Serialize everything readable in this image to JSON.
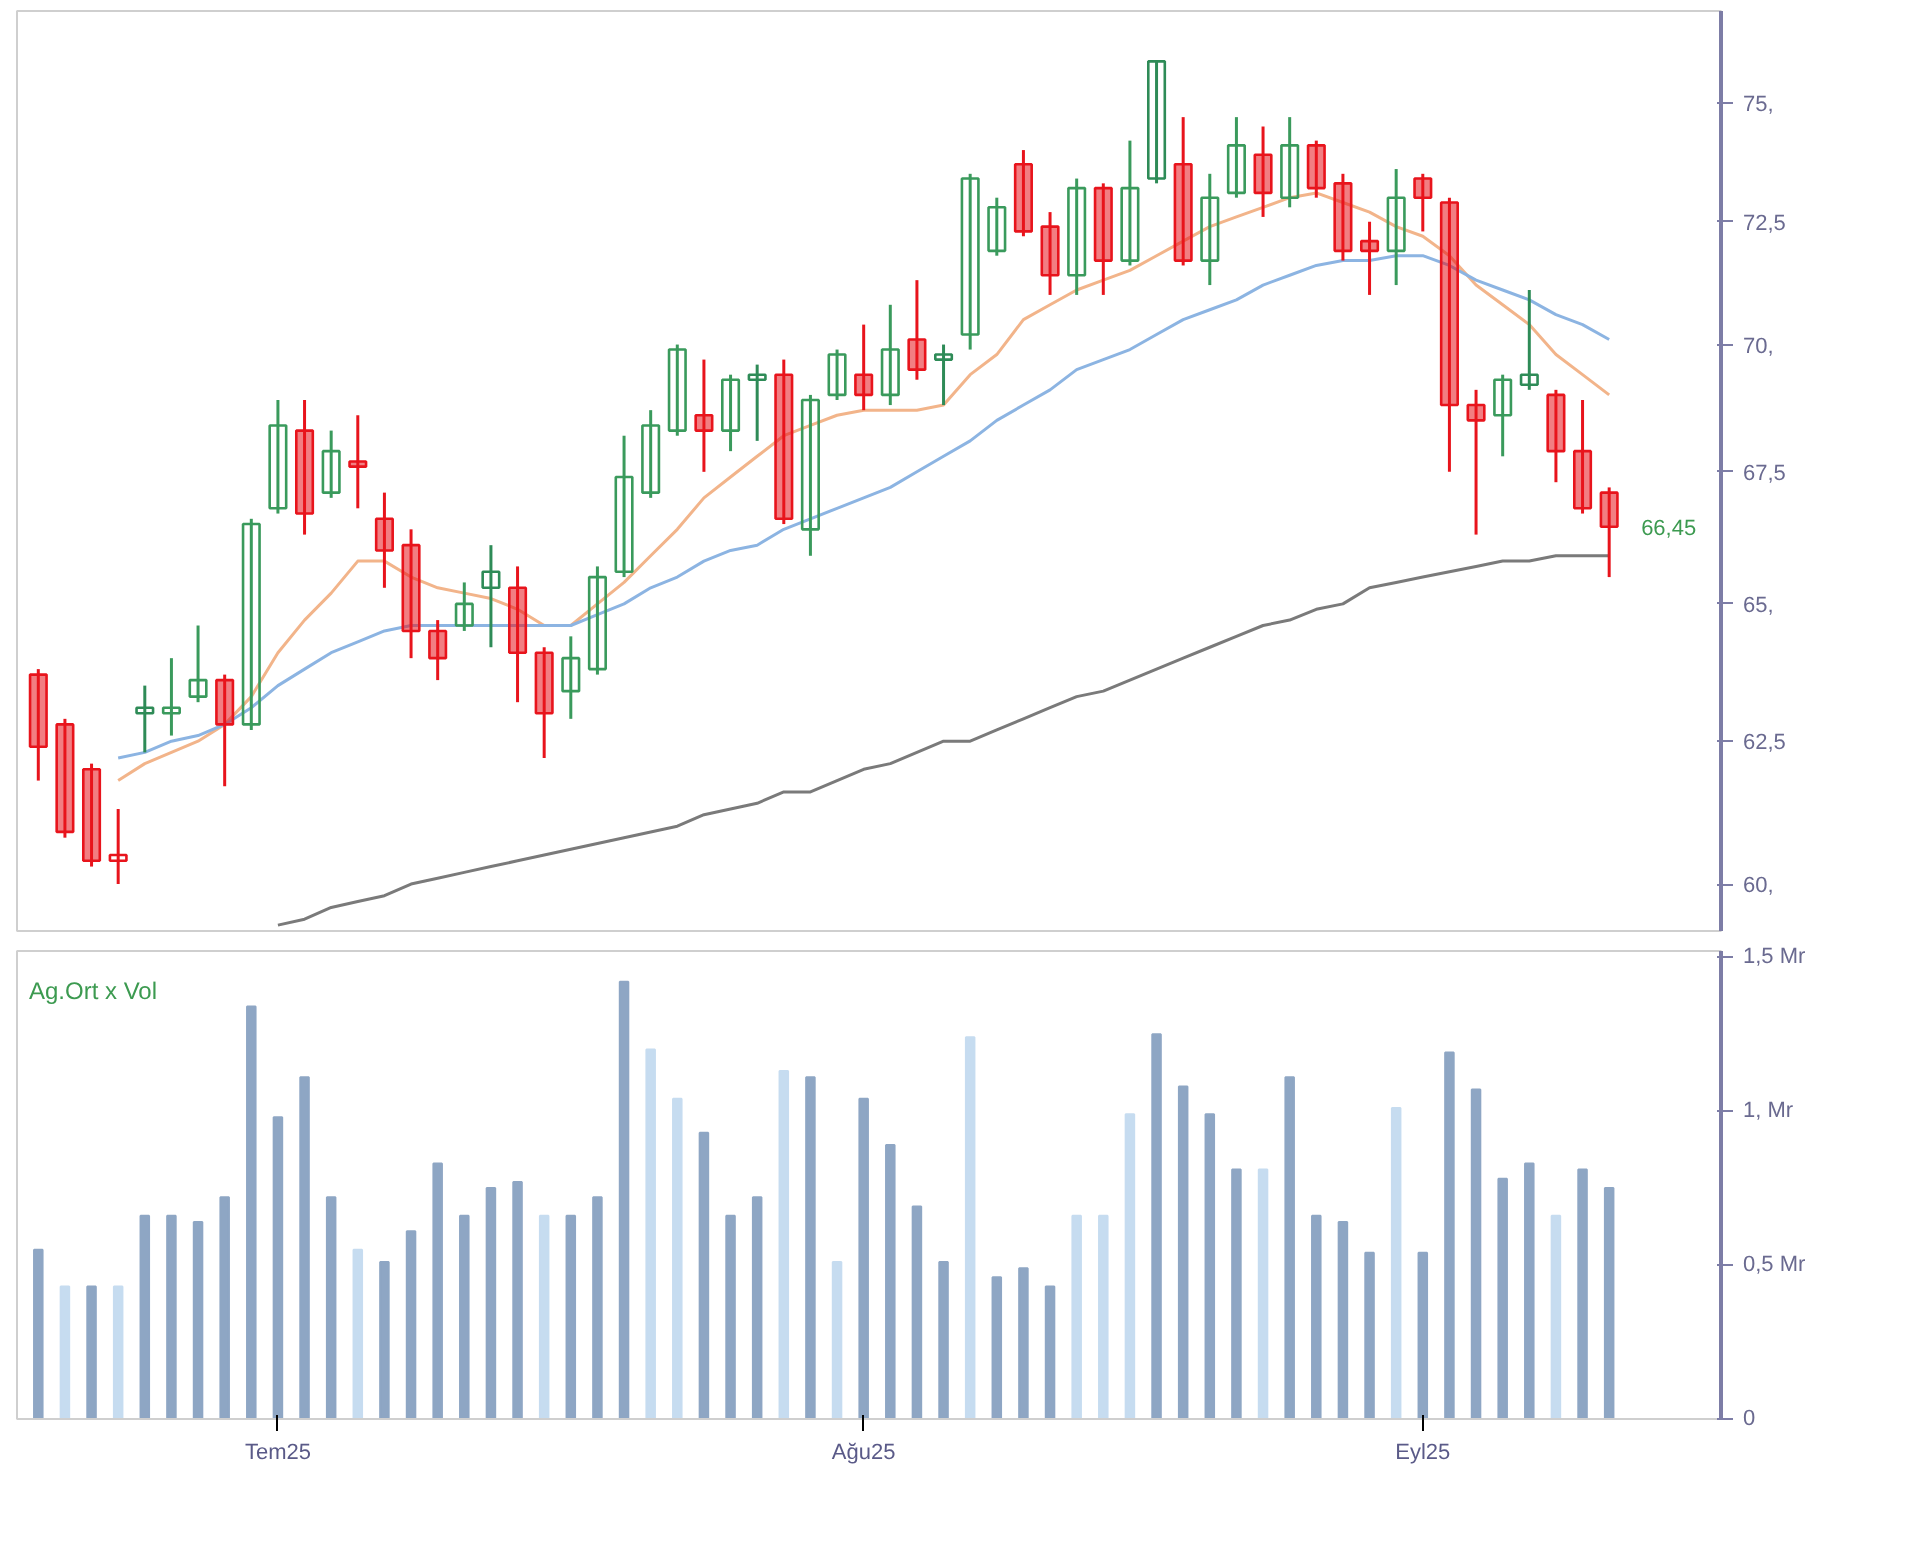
{
  "chart_data": [
    {
      "type": "candlestick",
      "log": "y",
      "ylim": [
        59.2,
        77.0
      ],
      "tick_labels": "y",
      "yticks": [
        {
          "value": 60,
          "label": "60,"
        },
        {
          "value": 62.5,
          "label": "62,5"
        },
        {
          "value": 65,
          "label": "65,"
        },
        {
          "value": 67.5,
          "label": "67,5"
        },
        {
          "value": 70,
          "label": "70,"
        },
        {
          "value": 72.5,
          "label": "72,5"
        },
        {
          "value": 75,
          "label": "75,"
        }
      ],
      "categories": [
        null,
        null,
        null,
        null,
        null,
        null,
        null,
        null,
        null,
        null,
        null,
        null,
        null,
        null,
        null,
        null,
        null,
        null,
        null,
        null,
        null,
        null,
        null,
        null,
        null,
        null,
        null,
        null,
        null,
        null,
        null,
        null,
        null,
        null,
        null,
        null,
        null,
        null,
        null,
        null,
        null,
        null,
        null,
        null,
        null,
        null,
        null,
        null,
        null,
        null,
        null,
        null,
        null,
        null,
        null,
        null,
        null,
        null,
        null,
        null
      ],
      "ohlc": [
        [
          63.7,
          63.8,
          61.8,
          62.4
        ],
        [
          62.8,
          62.9,
          60.8,
          60.9
        ],
        [
          62.0,
          62.1,
          60.3,
          60.4
        ],
        [
          60.4,
          61.3,
          60.0,
          60.5
        ],
        [
          63.0,
          63.5,
          62.3,
          63.1
        ],
        [
          63.0,
          64.0,
          62.6,
          63.1
        ],
        [
          63.3,
          64.6,
          63.2,
          63.6
        ],
        [
          63.6,
          63.7,
          61.7,
          62.8
        ],
        [
          62.8,
          66.6,
          62.7,
          66.5
        ],
        [
          66.8,
          68.9,
          66.7,
          68.4
        ],
        [
          68.3,
          68.9,
          66.3,
          66.7
        ],
        [
          67.1,
          68.3,
          67.0,
          67.9
        ],
        [
          67.7,
          68.6,
          66.8,
          67.6
        ],
        [
          66.6,
          67.1,
          65.3,
          66.0
        ],
        [
          66.1,
          66.4,
          64.0,
          64.5
        ],
        [
          64.5,
          64.7,
          63.6,
          64.0
        ],
        [
          64.6,
          65.4,
          64.5,
          65.0
        ],
        [
          65.3,
          66.1,
          64.2,
          65.6
        ],
        [
          65.3,
          65.7,
          63.2,
          64.1
        ],
        [
          64.1,
          64.2,
          62.2,
          63.0
        ],
        [
          63.4,
          64.4,
          62.9,
          64.0
        ],
        [
          63.8,
          65.7,
          63.7,
          65.5
        ],
        [
          65.6,
          68.2,
          65.5,
          67.4
        ],
        [
          67.1,
          68.7,
          67.0,
          68.4
        ],
        [
          68.3,
          70.0,
          68.2,
          69.9
        ],
        [
          68.6,
          69.7,
          67.5,
          68.3
        ],
        [
          68.3,
          69.4,
          67.9,
          69.3
        ],
        [
          69.3,
          69.6,
          68.1,
          69.4
        ],
        [
          69.4,
          69.7,
          66.5,
          66.6
        ],
        [
          66.4,
          69.0,
          65.9,
          68.9
        ],
        [
          69.0,
          69.9,
          68.9,
          69.8
        ],
        [
          69.4,
          70.4,
          68.7,
          69.0
        ],
        [
          69.0,
          70.8,
          68.8,
          69.9
        ],
        [
          70.1,
          71.3,
          69.3,
          69.5
        ],
        [
          69.7,
          70.0,
          68.8,
          69.8
        ],
        [
          70.2,
          73.5,
          69.9,
          73.4
        ],
        [
          71.9,
          73.0,
          71.8,
          72.8
        ],
        [
          73.7,
          74.0,
          72.2,
          72.3
        ],
        [
          72.4,
          72.7,
          71.0,
          71.4
        ],
        [
          71.4,
          73.4,
          71.0,
          73.2
        ],
        [
          73.2,
          73.3,
          71.0,
          71.7
        ],
        [
          71.7,
          74.2,
          71.6,
          73.2
        ],
        [
          73.4,
          75.9,
          73.3,
          75.9
        ],
        [
          73.7,
          74.7,
          71.6,
          71.7
        ],
        [
          71.7,
          73.5,
          71.2,
          73.0
        ],
        [
          73.1,
          74.7,
          73.0,
          74.1
        ],
        [
          73.9,
          74.5,
          72.6,
          73.1
        ],
        [
          73.0,
          74.7,
          72.8,
          74.1
        ],
        [
          74.1,
          74.2,
          73.0,
          73.2
        ],
        [
          73.3,
          73.5,
          71.7,
          71.9
        ],
        [
          72.1,
          72.5,
          71.0,
          71.9
        ],
        [
          71.9,
          73.6,
          71.2,
          73.0
        ],
        [
          73.4,
          73.5,
          72.3,
          73.0
        ],
        [
          72.9,
          73.0,
          67.5,
          68.8
        ],
        [
          68.8,
          69.1,
          66.3,
          68.5
        ],
        [
          68.6,
          69.4,
          67.8,
          69.3
        ],
        [
          69.2,
          71.1,
          69.1,
          69.4
        ],
        [
          69.0,
          69.1,
          67.3,
          67.9
        ],
        [
          67.9,
          68.9,
          66.7,
          66.8
        ],
        [
          67.1,
          67.2,
          65.5,
          66.45
        ]
      ],
      "colors": [
        "#e8141c",
        "#e8141c",
        "#e8141c",
        "#e8141c",
        "#2e8b57",
        "#3a9a5c",
        "#3a9a5c",
        "#e8141c",
        "#3a9a5c",
        "#3a9a5c",
        "#e8141c",
        "#3a9a5c",
        "#e8141c",
        "#e8141c",
        "#e8141c",
        "#e8141c",
        "#3a9a5c",
        "#2e8b57",
        "#e8141c",
        "#e8141c",
        "#3a9a5c",
        "#3a9a5c",
        "#3a9a5c",
        "#3a9a5c",
        "#3a9a5c",
        "#e8141c",
        "#3a9a5c",
        "#2e8b57",
        "#e8141c",
        "#3a9a5c",
        "#3a9a5c",
        "#e8141c",
        "#3a9a5c",
        "#e8141c",
        "#2e8b57",
        "#3a9a5c",
        "#3a9a5c",
        "#e8141c",
        "#e8141c",
        "#3a9a5c",
        "#e8141c",
        "#3a9a5c",
        "#2e8b57",
        "#e8141c",
        "#3a9a5c",
        "#3a9a5c",
        "#e8141c",
        "#3a9a5c",
        "#e8141c",
        "#e8141c",
        "#e8141c",
        "#3a9a5c",
        "#e8141c",
        "#e8141c",
        "#e8141c",
        "#3a9a5c",
        "#2e8b57",
        "#e8141c",
        "#e8141c",
        "#e8141c"
      ],
      "annotations": [
        "66,45"
      ],
      "series": [
        {
          "type": "line",
          "color": "#f2b48a",
          "values": [
            null,
            null,
            null,
            61.8,
            62.1,
            62.3,
            62.5,
            62.8,
            63.3,
            64.1,
            64.7,
            65.2,
            65.8,
            65.8,
            65.5,
            65.3,
            65.2,
            65.1,
            64.9,
            64.6,
            64.6,
            65.0,
            65.4,
            65.9,
            66.4,
            67.0,
            67.4,
            67.8,
            68.2,
            68.4,
            68.6,
            68.7,
            68.7,
            68.7,
            68.8,
            69.4,
            69.8,
            70.5,
            70.8,
            71.1,
            71.3,
            71.5,
            71.8,
            72.1,
            72.4,
            72.6,
            72.8,
            73.0,
            73.1,
            72.9,
            72.7,
            72.4,
            72.2,
            71.8,
            71.2,
            70.8,
            70.4,
            69.8,
            69.4,
            69.0
          ]
        },
        {
          "type": "line",
          "color": "#8cb4e2",
          "values": [
            null,
            null,
            null,
            62.2,
            62.3,
            62.5,
            62.6,
            62.8,
            63.1,
            63.5,
            63.8,
            64.1,
            64.3,
            64.5,
            64.6,
            64.6,
            64.6,
            64.6,
            64.6,
            64.6,
            64.6,
            64.8,
            65.0,
            65.3,
            65.5,
            65.8,
            66.0,
            66.1,
            66.4,
            66.6,
            66.8,
            67.0,
            67.2,
            67.5,
            67.8,
            68.1,
            68.5,
            68.8,
            69.1,
            69.5,
            69.7,
            69.9,
            70.2,
            70.5,
            70.7,
            70.9,
            71.2,
            71.4,
            71.6,
            71.7,
            71.7,
            71.8,
            71.8,
            71.6,
            71.3,
            71.1,
            70.9,
            70.6,
            70.4,
            70.1
          ]
        },
        {
          "type": "line",
          "color": "#7a7a7a",
          "values": [
            null,
            null,
            null,
            null,
            null,
            null,
            null,
            null,
            null,
            59.3,
            59.4,
            59.6,
            59.7,
            59.8,
            60.0,
            60.1,
            60.2,
            60.3,
            60.4,
            60.5,
            60.6,
            60.7,
            60.8,
            60.9,
            61.0,
            61.2,
            61.3,
            61.4,
            61.6,
            61.6,
            61.8,
            62.0,
            62.1,
            62.3,
            62.5,
            62.5,
            62.7,
            62.9,
            63.1,
            63.3,
            63.4,
            63.6,
            63.8,
            64.0,
            64.2,
            64.4,
            64.6,
            64.7,
            64.9,
            65.0,
            65.3,
            65.4,
            65.5,
            65.6,
            65.7,
            65.8,
            65.8,
            65.9,
            65.9,
            65.9
          ]
        }
      ]
    },
    {
      "type": "bar",
      "title": "Ag.Ort x Vol",
      "ylim": [
        0,
        1.52
      ],
      "yticks": [
        0,
        {
          "value": 0.5,
          "label": "0,5 Mr"
        },
        {
          "value": 1,
          "label": "1, Mr"
        },
        {
          "value": 1.5,
          "label": "1,5 Mr"
        }
      ],
      "categories": [
        null,
        null,
        null,
        null,
        null,
        null,
        null,
        null,
        null,
        "Tem25",
        null,
        null,
        null,
        null,
        null,
        null,
        null,
        null,
        null,
        null,
        null,
        null,
        null,
        null,
        null,
        null,
        null,
        null,
        null,
        null,
        null,
        "Ağu25",
        null,
        null,
        null,
        null,
        null,
        null,
        null,
        null,
        null,
        null,
        null,
        null,
        null,
        null,
        null,
        null,
        null,
        null,
        null,
        null,
        "Eyl25",
        null,
        null,
        null,
        null,
        null,
        null,
        null
      ],
      "values": [
        0.55,
        0.43,
        0.43,
        0.43,
        0.66,
        0.66,
        0.64,
        0.72,
        1.34,
        0.98,
        1.11,
        0.72,
        0.55,
        0.51,
        0.61,
        0.83,
        0.66,
        0.75,
        0.77,
        0.66,
        0.66,
        0.72,
        1.42,
        1.2,
        1.04,
        0.93,
        0.66,
        0.72,
        1.13,
        1.11,
        0.51,
        1.04,
        0.89,
        0.69,
        0.51,
        1.24,
        0.46,
        0.49,
        0.43,
        0.66,
        0.66,
        0.99,
        1.25,
        1.08,
        0.99,
        0.81,
        0.81,
        1.11,
        0.66,
        0.64,
        0.54,
        1.01,
        0.54,
        1.19,
        1.07,
        0.78,
        0.83,
        0.66,
        0.81,
        0.75
      ],
      "colors": [
        "#8ea6c4",
        "#c6dcf0",
        "#8ea6c4",
        "#c6dcf0",
        "#8ea6c4",
        "#8ea6c4",
        "#8ea6c4",
        "#8ea6c4",
        "#8ea6c4",
        "#8ea6c4",
        "#8ea6c4",
        "#8ea6c4",
        "#c6dcf0",
        "#8ea6c4",
        "#8ea6c4",
        "#8ea6c4",
        "#8ea6c4",
        "#8ea6c4",
        "#8ea6c4",
        "#c6dcf0",
        "#8ea6c4",
        "#8ea6c4",
        "#8ea6c4",
        "#c6dcf0",
        "#c6dcf0",
        "#8ea6c4",
        "#8ea6c4",
        "#8ea6c4",
        "#c6dcf0",
        "#8ea6c4",
        "#c6dcf0",
        "#8ea6c4",
        "#8ea6c4",
        "#8ea6c4",
        "#8ea6c4",
        "#c6dcf0",
        "#8ea6c4",
        "#8ea6c4",
        "#8ea6c4",
        "#c6dcf0",
        "#c6dcf0",
        "#c6dcf0",
        "#8ea6c4",
        "#8ea6c4",
        "#8ea6c4",
        "#8ea6c4",
        "#c6dcf0",
        "#8ea6c4",
        "#8ea6c4",
        "#8ea6c4",
        "#8ea6c4",
        "#c6dcf0",
        "#8ea6c4",
        "#8ea6c4",
        "#8ea6c4",
        "#8ea6c4",
        "#8ea6c4",
        "#c6dcf0",
        "#8ea6c4",
        "#8ea6c4"
      ]
    }
  ]
}
